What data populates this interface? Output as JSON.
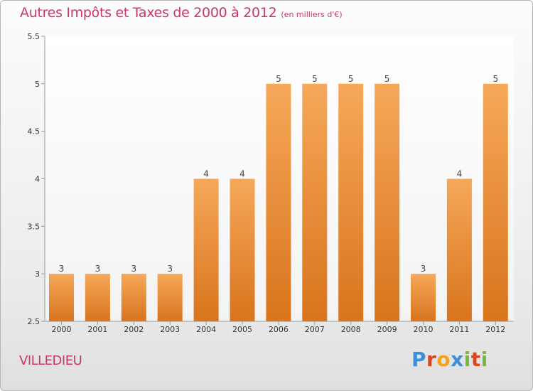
{
  "header": {
    "title": "Autres Impôts et Taxes de 2000 à 2012",
    "unit": "(en milliers d'€)"
  },
  "footer": {
    "location": "VILLEDIEU",
    "brand": [
      "P",
      "r",
      "o",
      "x",
      "i",
      "t",
      "i"
    ]
  },
  "colors": {
    "text_accent": "#c8386a",
    "bar_light": "#f6a85a",
    "bar_dark": "#d8741c",
    "brand": [
      "#3c8fd8",
      "#d8461e",
      "#f2a21c",
      "#3c8fd8",
      "#7ab63c",
      "#d8461e",
      "#7ab63c"
    ]
  },
  "chart_data": {
    "type": "bar",
    "categories": [
      "2000",
      "2001",
      "2002",
      "2003",
      "2004",
      "2005",
      "2006",
      "2007",
      "2008",
      "2009",
      "2010",
      "2011",
      "2012"
    ],
    "values": [
      3,
      3,
      3,
      3,
      4,
      4,
      5,
      5,
      5,
      5,
      3,
      4,
      5
    ],
    "data_labels": [
      "3",
      "3",
      "3",
      "3",
      "4",
      "4",
      "5",
      "5",
      "5",
      "5",
      "3",
      "4",
      "5"
    ],
    "ylim": [
      2.5,
      5.5
    ],
    "yticks": [
      2.5,
      3,
      3.5,
      4,
      4.5,
      5,
      5.5
    ],
    "ytick_labels": [
      "2.5",
      "3",
      "3.5",
      "4",
      "4.5",
      "5",
      "5.5"
    ],
    "grid": false
  }
}
